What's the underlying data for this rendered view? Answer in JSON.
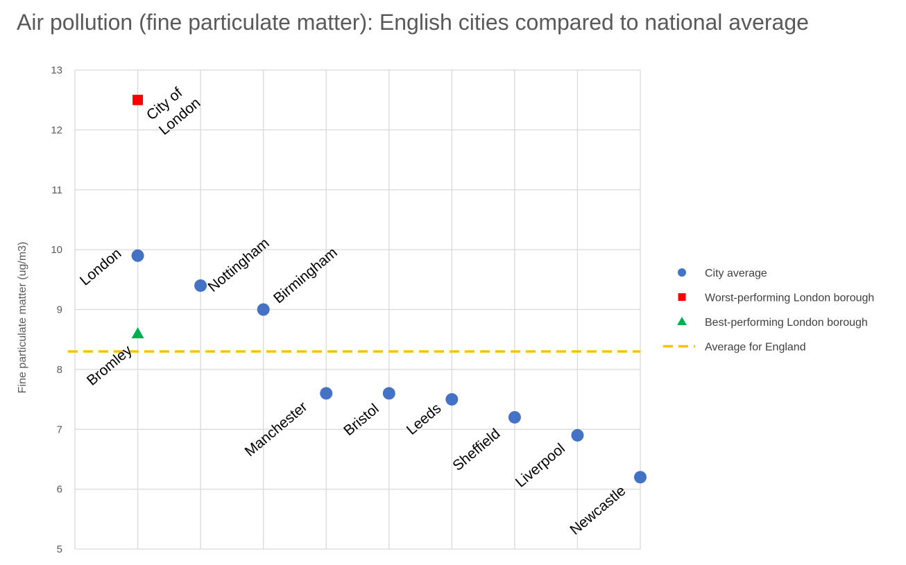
{
  "chart_data": {
    "type": "scatter",
    "title": "Air pollution (fine particulate matter): English cities compared to national average",
    "ylabel": "Fine particulate matter (ug/m3)",
    "xlabel": "",
    "ylim": [
      5,
      13
    ],
    "yticks": [
      "5",
      "6",
      "7",
      "8",
      "9",
      "10",
      "11",
      "12",
      "13"
    ],
    "grid": true,
    "legend_position": "right",
    "categories": [
      "London",
      "Nottingham",
      "Birmingham",
      "Manchester",
      "Bristol",
      "Leeds",
      "Sheffield",
      "Liverpool",
      "Newcastle"
    ],
    "series": [
      {
        "name": "City average",
        "marker": "circle",
        "color": "#4472C4",
        "points": [
          {
            "label": "London",
            "x": 1,
            "y": 9.9
          },
          {
            "label": "Nottingham",
            "x": 2,
            "y": 9.4
          },
          {
            "label": "Birmingham",
            "x": 3,
            "y": 9.0
          },
          {
            "label": "Manchester",
            "x": 4,
            "y": 7.6
          },
          {
            "label": "Bristol",
            "x": 5,
            "y": 7.6
          },
          {
            "label": "Leeds",
            "x": 6,
            "y": 7.5
          },
          {
            "label": "Sheffield",
            "x": 7,
            "y": 7.2
          },
          {
            "label": "Liverpool",
            "x": 8,
            "y": 6.9
          },
          {
            "label": "Newcastle",
            "x": 9,
            "y": 6.2
          }
        ]
      },
      {
        "name": "Worst-performing London borough",
        "marker": "square",
        "color": "#FF0000",
        "points": [
          {
            "label": "City of\nLondon",
            "x": 1,
            "y": 12.5
          }
        ]
      },
      {
        "name": "Best-performing London borough",
        "marker": "triangle",
        "color": "#00B050",
        "points": [
          {
            "label": "Bromley",
            "x": 1,
            "y": 8.6
          }
        ]
      },
      {
        "name": "Average for England",
        "marker": "dashed-line",
        "color": "#FFC000",
        "y": 8.3
      }
    ]
  }
}
